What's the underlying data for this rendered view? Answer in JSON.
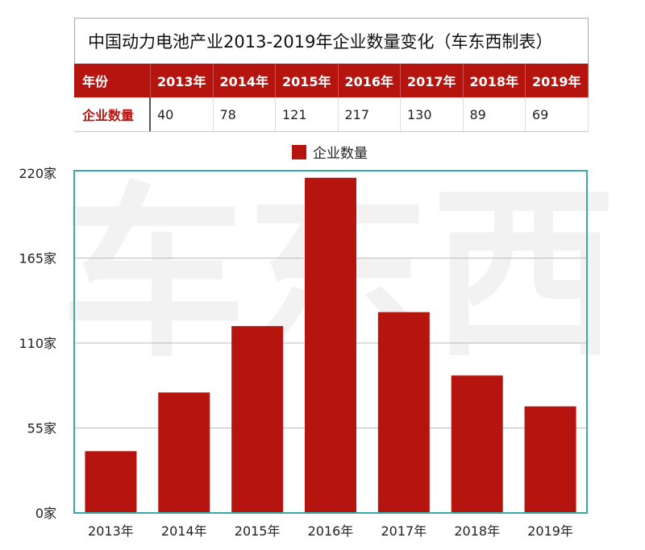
{
  "table": {
    "title": "中国动力电池产业2013-2019年企业数量变化（车东西制表）",
    "header": [
      "年份",
      "2013年",
      "2014年",
      "2015年",
      "2016年",
      "2017年",
      "2018年",
      "2019年"
    ],
    "row": [
      "企业数量",
      "40",
      "78",
      "121",
      "217",
      "130",
      "89",
      "69"
    ]
  },
  "watermark": "车东西",
  "chart_data": {
    "type": "bar",
    "categories": [
      "2013年",
      "2014年",
      "2015年",
      "2016年",
      "2017年",
      "2018年",
      "2019年"
    ],
    "series": [
      {
        "name": "企业数量",
        "values": [
          40,
          78,
          121,
          217,
          130,
          89,
          69
        ]
      }
    ],
    "yticks": [
      "0家",
      "55家",
      "110家",
      "165家",
      "220家"
    ],
    "ylim": [
      0,
      220
    ],
    "grid": true,
    "legend": "top",
    "colors": {
      "bar": "#b5140f",
      "frame": "#3aaaa5",
      "grid": "#bbbbbb"
    }
  }
}
